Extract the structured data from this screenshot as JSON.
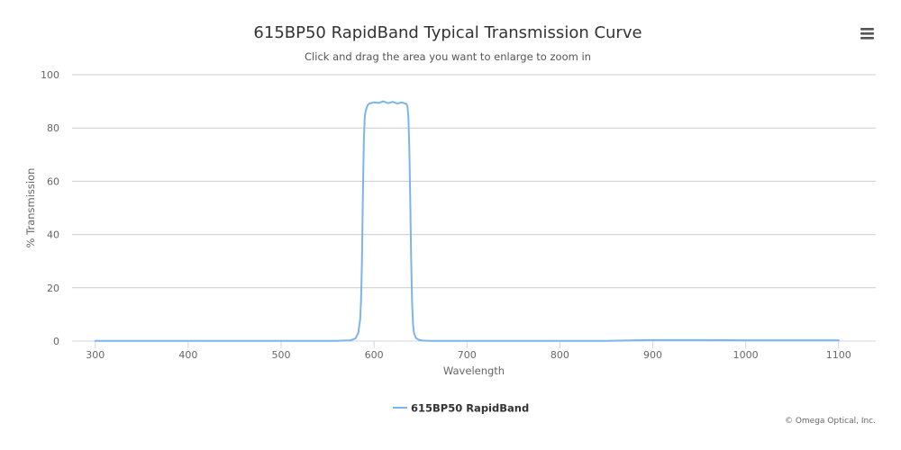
{
  "chart_data": {
    "type": "line",
    "title": "615BP50 RapidBand Typical Transmission Curve",
    "subtitle": "Click and drag the area you want to enlarge to zoom in",
    "xlabel": "Wavelength",
    "ylabel": "% Transmission",
    "xlim": [
      275,
      1140
    ],
    "ylim": [
      0,
      100
    ],
    "x_ticks": [
      300,
      400,
      500,
      600,
      700,
      800,
      900,
      1000,
      1100
    ],
    "y_ticks": [
      0,
      20,
      40,
      60,
      80,
      100
    ],
    "grid": "horizontal",
    "legend": "bottom-center",
    "series": [
      {
        "name": "615BP50 RapidBand",
        "color": "#7cb5ec",
        "x": [
          300,
          400,
          500,
          560,
          575,
          580,
          583,
          585,
          586,
          587,
          588,
          589,
          590,
          591,
          592,
          593,
          595,
          600,
          605,
          610,
          615,
          620,
          625,
          630,
          635,
          636,
          637,
          638,
          639,
          640,
          641,
          642,
          643,
          645,
          648,
          652,
          660,
          700,
          800,
          850,
          880,
          900,
          950,
          1000,
          1050,
          1100
        ],
        "values": [
          0.1,
          0.1,
          0.1,
          0.1,
          0.3,
          1,
          3,
          8,
          15,
          30,
          55,
          75,
          84,
          86.5,
          87.5,
          88.5,
          89.2,
          89.6,
          89.4,
          90,
          89.3,
          89.8,
          89.2,
          89.6,
          89,
          88,
          84,
          72,
          52,
          30,
          14,
          6,
          3,
          1.2,
          0.5,
          0.2,
          0.1,
          0.1,
          0.1,
          0.1,
          0.3,
          0.4,
          0.4,
          0.3,
          0.3,
          0.3
        ]
      }
    ]
  },
  "credit": "© Omega Optical, Inc.",
  "menu_icon": "hamburger-menu-icon"
}
